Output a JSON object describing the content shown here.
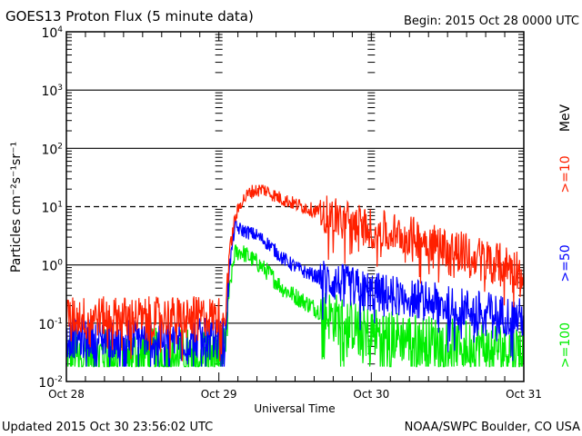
{
  "chart_data": {
    "type": "line",
    "title": "GOES13 Proton Flux (5 minute data)",
    "begin_label": "Begin: 2015 Oct 28 0000 UTC",
    "xlabel": "Universal Time",
    "ylabel": "Particles cm⁻²s⁻¹sr⁻¹",
    "yscale": "log",
    "ylim": [
      0.01,
      10000
    ],
    "xlim_hours": [
      0,
      72
    ],
    "y_ticks": [
      {
        "base": "10",
        "exp": "4",
        "value": 10000
      },
      {
        "base": "10",
        "exp": "3",
        "value": 1000
      },
      {
        "base": "10",
        "exp": "2",
        "value": 100
      },
      {
        "base": "10",
        "exp": "1",
        "value": 10
      },
      {
        "base": "10",
        "exp": "0",
        "value": 1
      },
      {
        "base": "10",
        "exp": "-1",
        "value": 0.1
      },
      {
        "base": "10",
        "exp": "-2",
        "value": 0.01
      }
    ],
    "x_ticks": [
      {
        "label": "Oct 28",
        "hour": 0
      },
      {
        "label": "Oct 29",
        "hour": 24
      },
      {
        "label": "Oct 30",
        "hour": 48
      },
      {
        "label": "Oct 31",
        "hour": 72
      }
    ],
    "unit_label": "MeV",
    "series": [
      {
        "name": ">=10",
        "color": "#ff2000",
        "noise": 0.35,
        "points": [
          [
            0,
            0.13
          ],
          [
            24,
            0.13
          ],
          [
            25,
            0.15
          ],
          [
            25.6,
            1.5
          ],
          [
            26.5,
            6
          ],
          [
            27.5,
            12
          ],
          [
            29,
            18
          ],
          [
            31,
            20
          ],
          [
            33,
            15
          ],
          [
            36,
            11
          ],
          [
            40,
            8
          ],
          [
            44,
            6
          ],
          [
            48,
            4.2
          ],
          [
            52,
            3.6
          ],
          [
            56,
            2.8
          ],
          [
            60,
            2.0
          ],
          [
            64,
            1.5
          ],
          [
            68,
            1.1
          ],
          [
            72,
            0.8
          ]
        ]
      },
      {
        "name": ">=50",
        "color": "#0000ff",
        "noise": 0.35,
        "points": [
          [
            0,
            0.055
          ],
          [
            24,
            0.055
          ],
          [
            25,
            0.06
          ],
          [
            25.6,
            0.8
          ],
          [
            26.5,
            4.5
          ],
          [
            27.5,
            4.0
          ],
          [
            30,
            3.2
          ],
          [
            32,
            2.2
          ],
          [
            34,
            1.3
          ],
          [
            37,
            0.8
          ],
          [
            40,
            0.6
          ],
          [
            44,
            0.45
          ],
          [
            48,
            0.35
          ],
          [
            54,
            0.28
          ],
          [
            60,
            0.2
          ],
          [
            66,
            0.16
          ],
          [
            72,
            0.12
          ]
        ]
      },
      {
        "name": ">=100",
        "color": "#00ee00",
        "noise": 0.45,
        "points": [
          [
            0,
            0.03
          ],
          [
            24,
            0.03
          ],
          [
            25,
            0.032
          ],
          [
            25.6,
            0.3
          ],
          [
            26.5,
            1.6
          ],
          [
            27.5,
            1.7
          ],
          [
            30,
            1.1
          ],
          [
            32,
            0.7
          ],
          [
            34,
            0.4
          ],
          [
            37,
            0.25
          ],
          [
            40,
            0.16
          ],
          [
            44,
            0.1
          ],
          [
            48,
            0.07
          ],
          [
            54,
            0.055
          ],
          [
            60,
            0.045
          ],
          [
            66,
            0.04
          ],
          [
            72,
            0.035
          ]
        ]
      }
    ]
  },
  "footer": {
    "updated": "Updated 2015 Oct 30 23:56:02 UTC",
    "credit": "NOAA/SWPC Boulder, CO USA"
  }
}
